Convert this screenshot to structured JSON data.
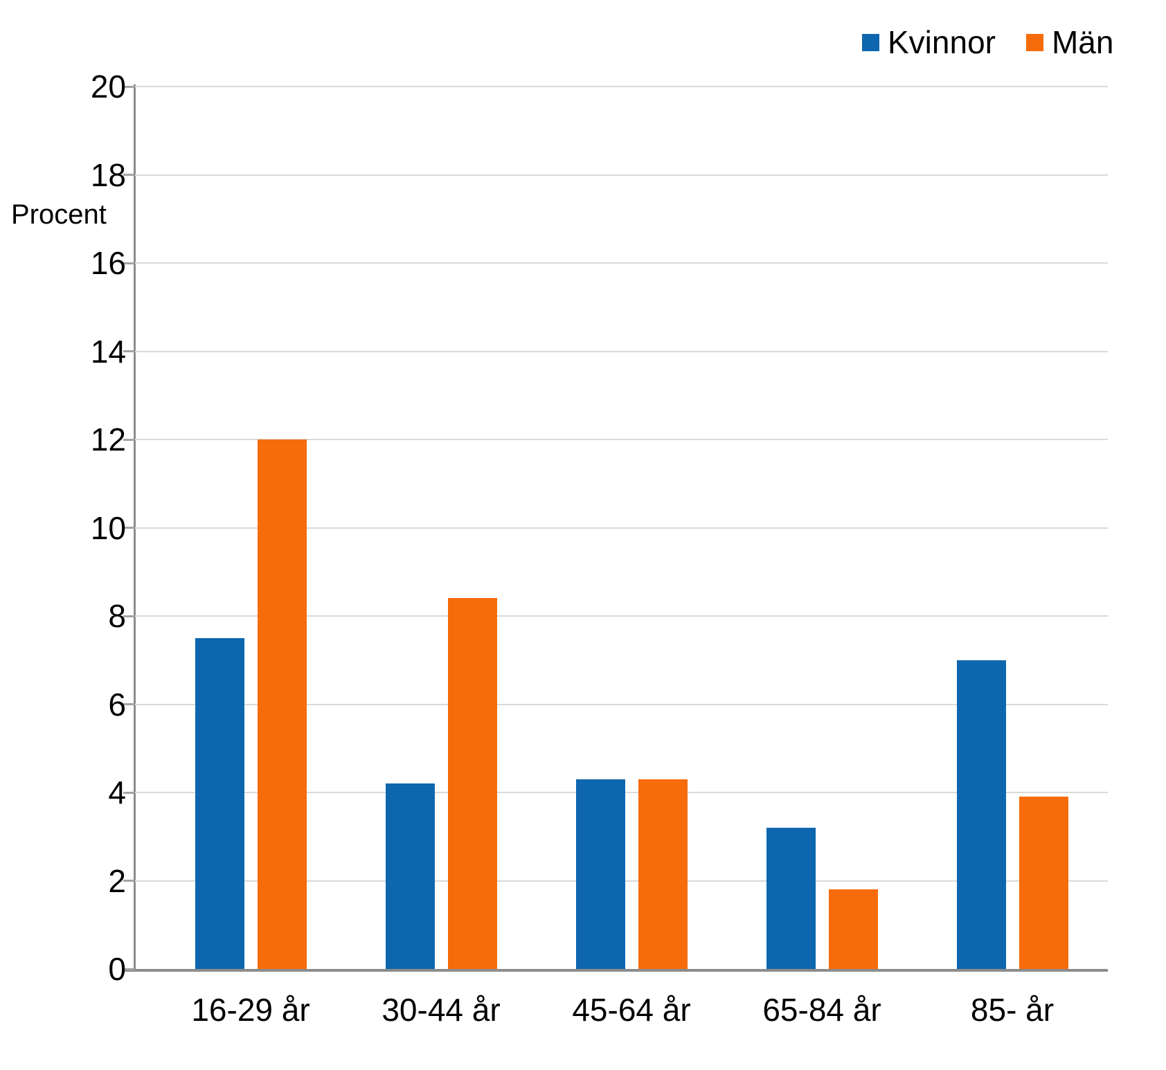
{
  "chart_data": {
    "type": "bar",
    "title": "",
    "ylabel": "Procent",
    "xlabel": "",
    "categories": [
      "16-29 år",
      "30-44 år",
      "45-64 år",
      "65-84 år",
      "85- år"
    ],
    "series": [
      {
        "name": "Kvinnor",
        "color": "#0e67ae",
        "values": [
          7.5,
          4.2,
          4.3,
          3.2,
          7.0
        ]
      },
      {
        "name": "Män",
        "color": "#f66c0a",
        "values": [
          12.0,
          8.4,
          4.3,
          1.8,
          3.9
        ]
      }
    ],
    "ylim": [
      0,
      20
    ],
    "yticks": [
      0,
      2,
      4,
      6,
      8,
      10,
      12,
      14,
      16,
      18,
      20
    ],
    "grid": true,
    "legend_position": "top-right",
    "gridline_color": "#d9d9d9",
    "axis_color": "#8c8c8c"
  }
}
